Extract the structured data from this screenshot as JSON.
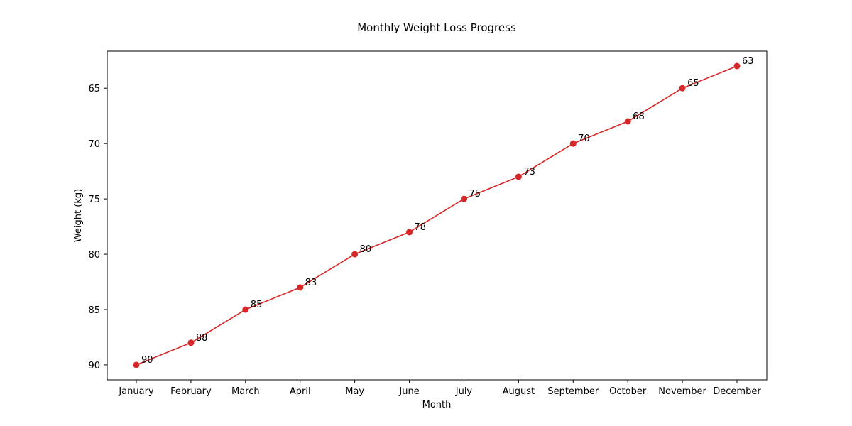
{
  "chart_data": {
    "type": "line",
    "title": "Monthly Weight Loss Progress",
    "xlabel": "Month",
    "ylabel": "Weight (kg)",
    "categories": [
      "January",
      "February",
      "March",
      "April",
      "May",
      "June",
      "July",
      "August",
      "September",
      "October",
      "November",
      "December"
    ],
    "series": [
      {
        "values": [
          90,
          88,
          85,
          83,
          80,
          78,
          75,
          73,
          70,
          68,
          65,
          63
        ],
        "color": "#d62728",
        "marker": "circle"
      }
    ],
    "data_labels": [
      "90",
      "88",
      "85",
      "83",
      "80",
      "78",
      "75",
      "73",
      "70",
      "68",
      "65",
      "63"
    ],
    "y_ticks": [
      65,
      70,
      75,
      80,
      85,
      90
    ],
    "y_tick_labels": [
      "65",
      "70",
      "75",
      "80",
      "85",
      "90"
    ],
    "ylim": [
      61.65,
      91.35
    ],
    "y_inverted": true,
    "grid": false,
    "legend": "none"
  }
}
